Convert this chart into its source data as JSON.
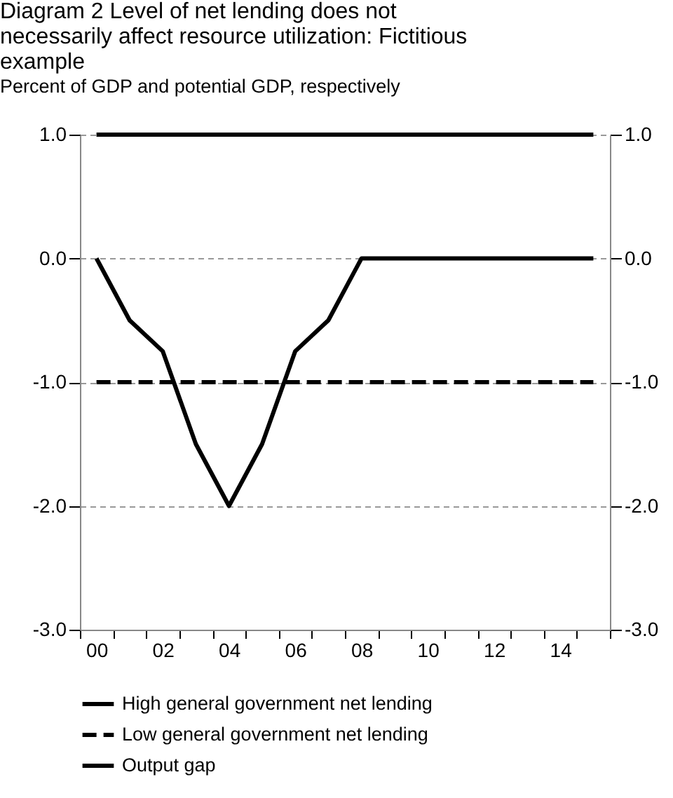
{
  "chart_data": {
    "type": "line",
    "title": "Diagram 2 Level of net lending does not necessarily affect resource utilization: Fictitious example",
    "subtitle": "Percent of GDP and potential GDP, respectively",
    "categories": [
      "00",
      null,
      "02",
      null,
      "04",
      null,
      "06",
      null,
      "08",
      null,
      "10",
      null,
      "12",
      null,
      "14",
      null
    ],
    "series": [
      {
        "name": "High general government net lending",
        "color": "#000000",
        "line_style": "solid",
        "values": [
          1,
          1,
          1,
          1,
          1,
          1,
          1,
          1,
          1,
          1,
          1,
          1,
          1,
          1,
          1,
          1
        ]
      },
      {
        "name": "Low general government net lending",
        "color": "#000000",
        "line_style": "dashed",
        "values": [
          -1,
          -1,
          -1,
          -1,
          -1,
          -1,
          -1,
          -1,
          -1,
          -1,
          -1,
          -1,
          -1,
          -1,
          -1,
          -1
        ]
      },
      {
        "name": "Output gap",
        "color": "#000000",
        "line_style": "solid",
        "values": [
          0,
          -0.5,
          -0.75,
          -1.5,
          -2,
          -1.5,
          -0.75,
          -0.5,
          0,
          0,
          0,
          0,
          0,
          0,
          0,
          0
        ]
      }
    ],
    "ylim": [
      -3,
      1
    ],
    "yticks": [
      {
        "value": -3,
        "label": "-3.0"
      },
      {
        "value": -2,
        "label": "-2.0"
      },
      {
        "value": -1,
        "label": "-1.0"
      },
      {
        "value": 0,
        "label": "0.0"
      },
      {
        "value": 1,
        "label": "1.0"
      }
    ],
    "y2lim": [
      -3,
      1
    ],
    "y2ticks": [
      {
        "value": -3,
        "label": "-3.0"
      },
      {
        "value": -2,
        "label": "-2.0"
      },
      {
        "value": -1,
        "label": "-1.0"
      },
      {
        "value": 0,
        "label": "0.0"
      },
      {
        "value": 1,
        "label": "1.0"
      }
    ],
    "grid": "y",
    "legend": "bottom",
    "marker": "none"
  }
}
